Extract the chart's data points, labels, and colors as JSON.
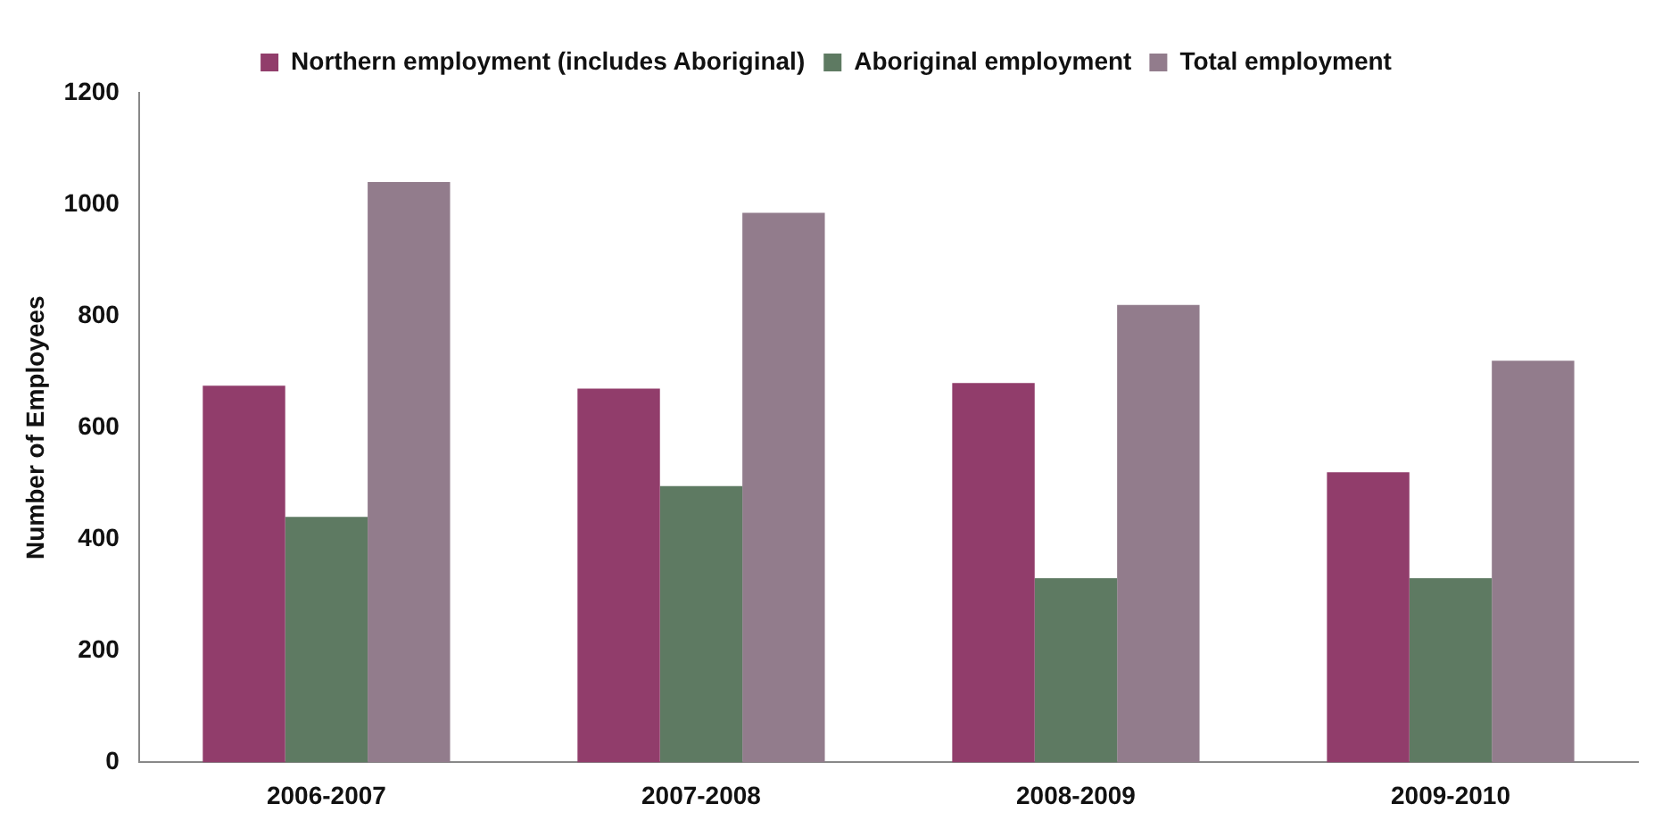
{
  "chart_data": {
    "type": "bar",
    "ylabel": "Number of Employees",
    "categories": [
      "2006-2007",
      "2007-2008",
      "2008-2009",
      "2009-2010"
    ],
    "series": [
      {
        "name": "Northern employment (includes Aboriginal)",
        "color": "#913d6b",
        "values": [
          675,
          670,
          680,
          520
        ]
      },
      {
        "name": "Aboriginal employment",
        "color": "#5e7a62",
        "values": [
          440,
          495,
          330,
          330
        ]
      },
      {
        "name": "Total employment",
        "color": "#927c8c",
        "values": [
          1040,
          985,
          820,
          720
        ]
      }
    ],
    "ylim": [
      0,
      1200
    ],
    "yticks": [
      0,
      200,
      400,
      600,
      800,
      1000,
      1200
    ],
    "grid": false,
    "legend": "top"
  }
}
